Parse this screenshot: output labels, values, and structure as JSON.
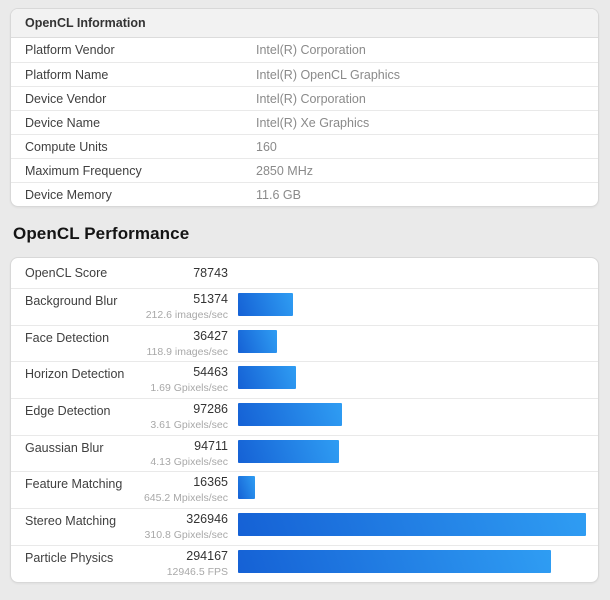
{
  "info_card": {
    "header": "OpenCL Information",
    "rows": [
      {
        "label": "Platform Vendor",
        "value": "Intel(R) Corporation"
      },
      {
        "label": "Platform Name",
        "value": "Intel(R) OpenCL Graphics"
      },
      {
        "label": "Device Vendor",
        "value": "Intel(R) Corporation"
      },
      {
        "label": "Device Name",
        "value": "Intel(R) Xe Graphics"
      },
      {
        "label": "Compute Units",
        "value": "160"
      },
      {
        "label": "Maximum Frequency",
        "value": "2850 MHz"
      },
      {
        "label": "Device Memory",
        "value": "11.6 GB"
      }
    ]
  },
  "performance_section": {
    "title": "OpenCL Performance",
    "score_row": {
      "label": "OpenCL Score",
      "value": "78743"
    },
    "benchmarks": [
      {
        "label": "Background Blur",
        "score": 51374,
        "rate": "212.6 images/sec"
      },
      {
        "label": "Face Detection",
        "score": 36427,
        "rate": "118.9 images/sec"
      },
      {
        "label": "Horizon Detection",
        "score": 54463,
        "rate": "1.69 Gpixels/sec"
      },
      {
        "label": "Edge Detection",
        "score": 97286,
        "rate": "3.61 Gpixels/sec"
      },
      {
        "label": "Gaussian Blur",
        "score": 94711,
        "rate": "4.13 Gpixels/sec"
      },
      {
        "label": "Feature Matching",
        "score": 16365,
        "rate": "645.2 Mpixels/sec"
      },
      {
        "label": "Stereo Matching",
        "score": 326946,
        "rate": "310.8 Gpixels/sec"
      },
      {
        "label": "Particle Physics",
        "score": 294167,
        "rate": "12946.5 FPS"
      }
    ]
  },
  "colors": {
    "page_background": "#eaeaea",
    "bar_gradient_start": "#1561d5",
    "bar_gradient_end": "#2f9df3"
  }
}
